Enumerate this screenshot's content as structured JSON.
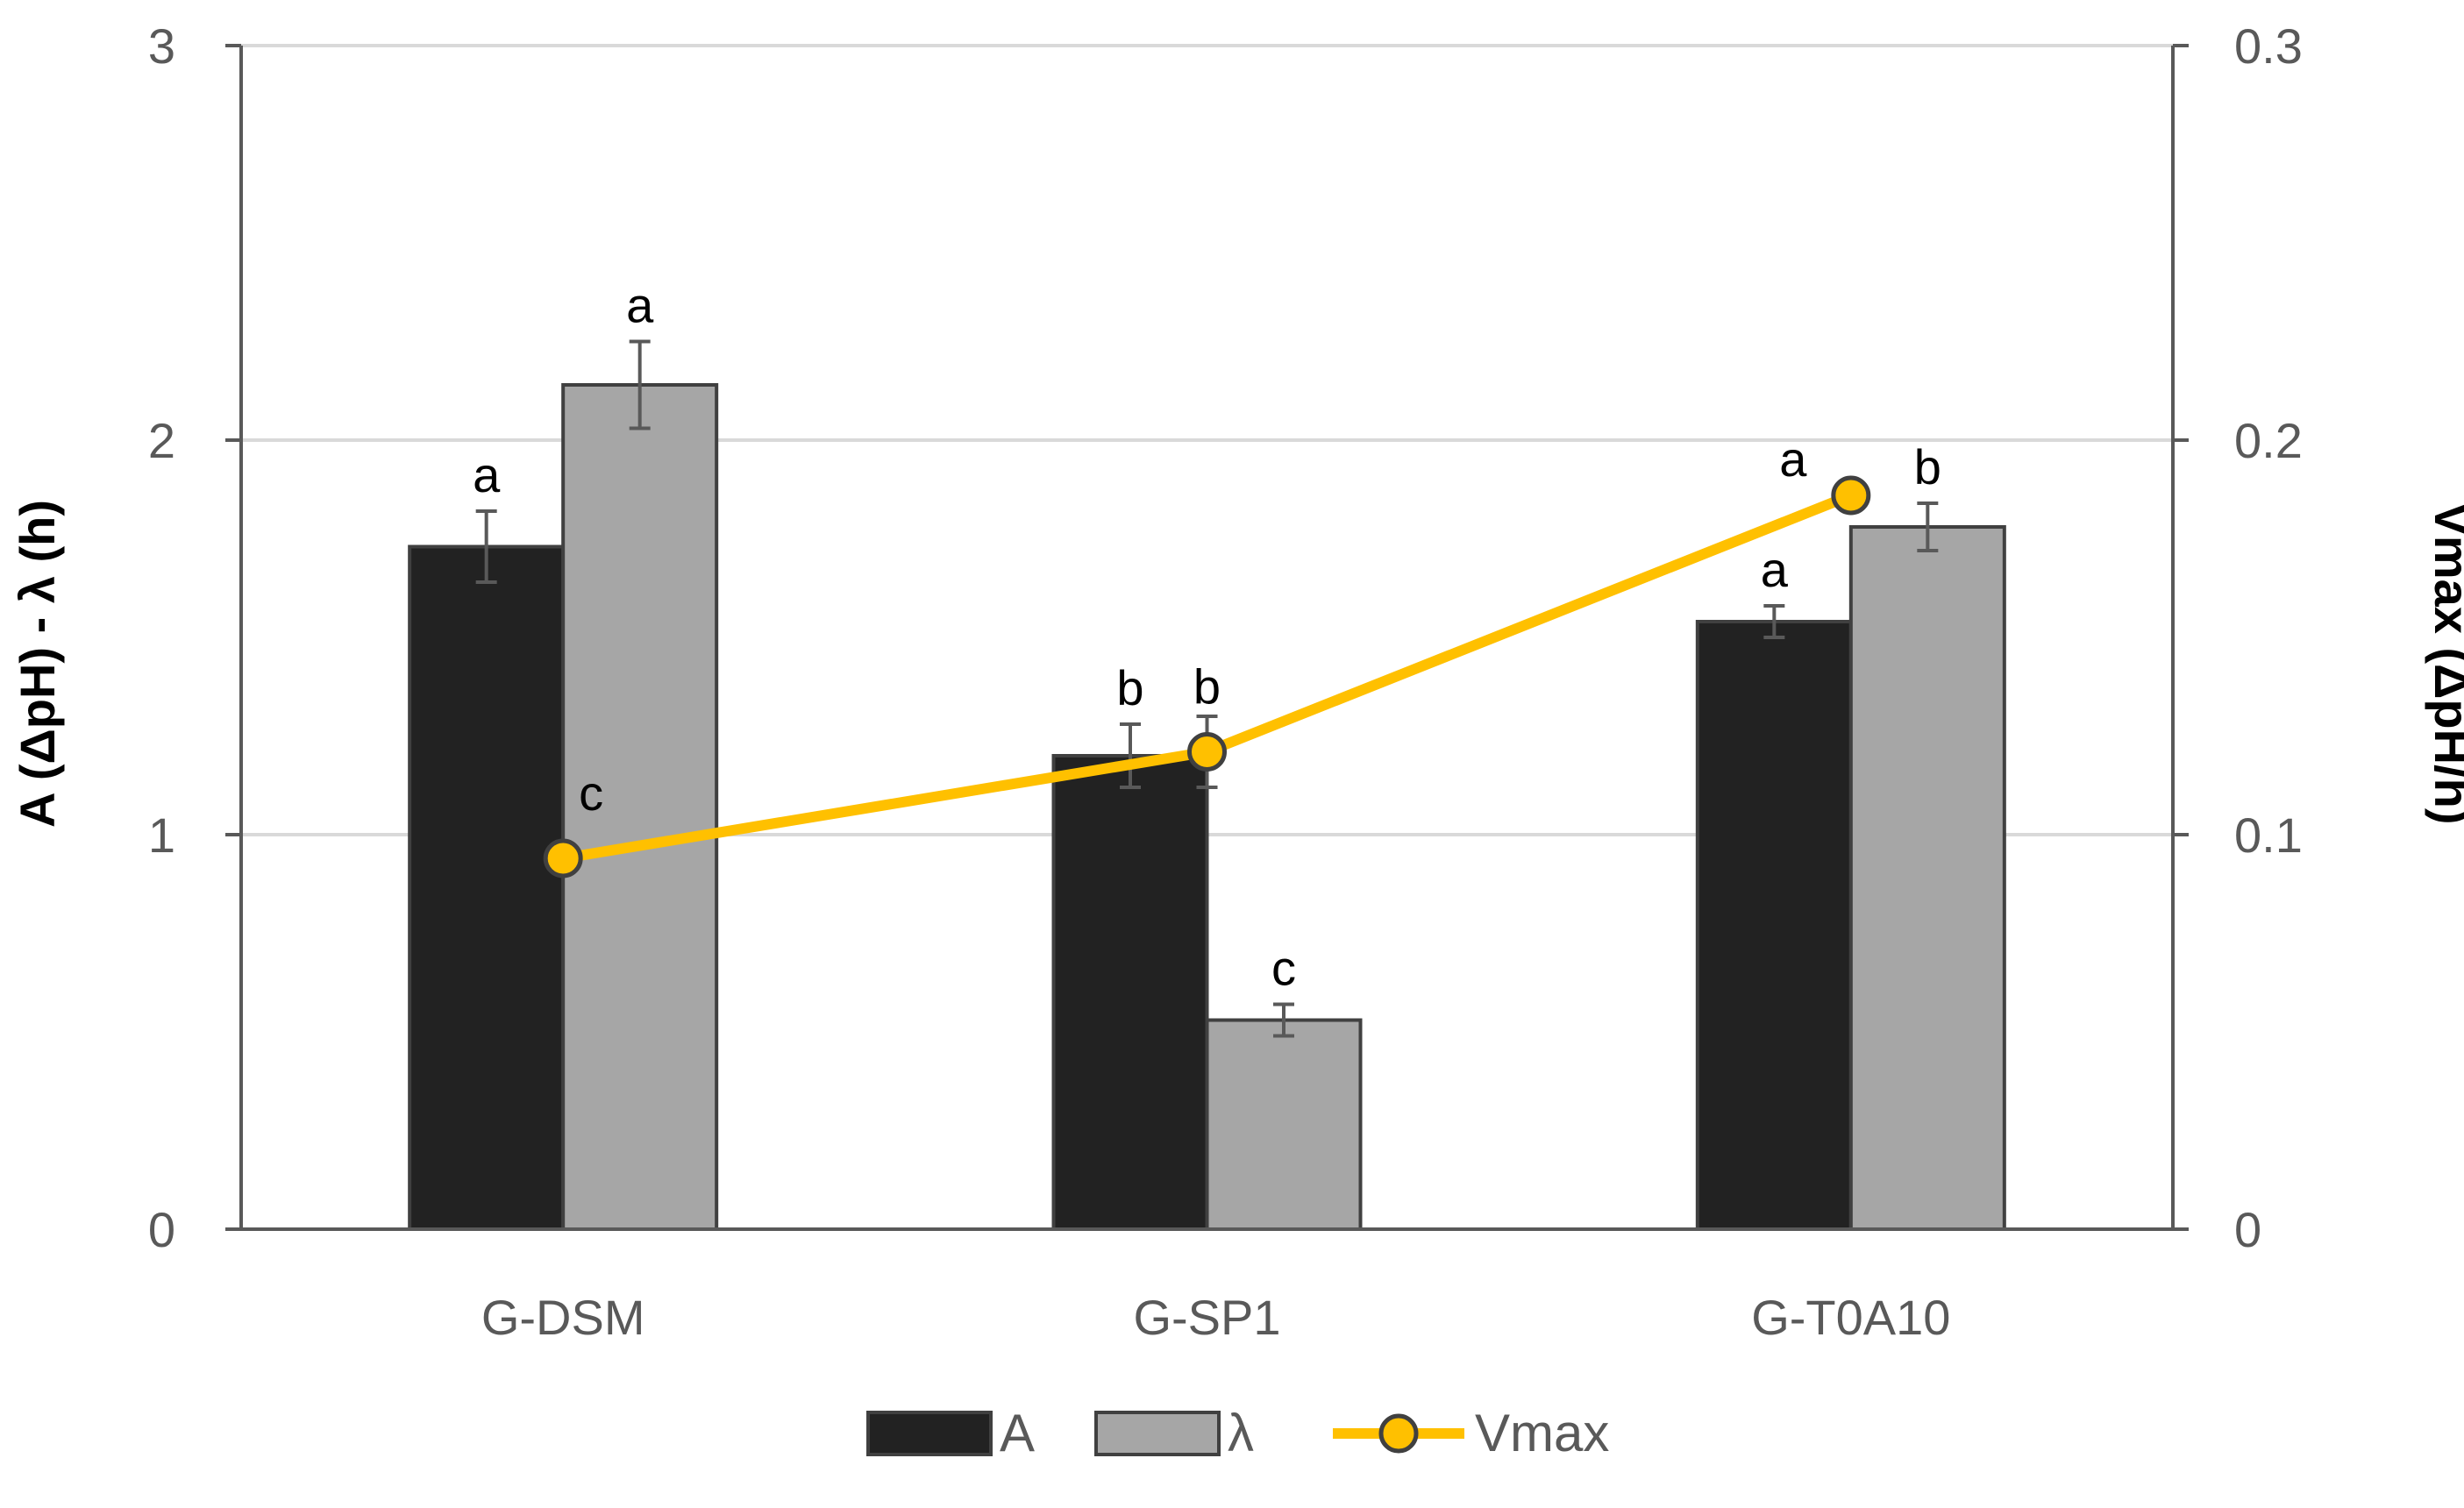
{
  "chart_data": {
    "type": "bar",
    "categories": [
      "G-DSM",
      "G-SP1",
      "G-T0A10"
    ],
    "series": [
      {
        "name": "A",
        "kind": "bar",
        "axis": "left",
        "color": "#222222",
        "values": [
          1.73,
          1.2,
          1.54
        ],
        "errors": [
          0.09,
          0.08,
          0.04
        ],
        "letters": [
          "a",
          "b",
          "a"
        ]
      },
      {
        "name": "λ",
        "kind": "bar",
        "axis": "left",
        "color": "#a6a6a6",
        "values": [
          2.14,
          0.53,
          1.78
        ],
        "errors": [
          0.11,
          0.04,
          0.06
        ],
        "letters": [
          "a",
          "c",
          "b"
        ]
      },
      {
        "name": "Vmax",
        "kind": "line",
        "axis": "right",
        "color": "#ffc000",
        "values": [
          0.094,
          0.121,
          0.186
        ],
        "errors": [
          0.0,
          0.009,
          0.0
        ],
        "letters": [
          "c",
          "b",
          "a"
        ]
      }
    ],
    "ylabel": "A (ΔpH) - λ (h)",
    "y2label": "Vmax (ΔpH/h)",
    "ylim": [
      0,
      3
    ],
    "y2lim": [
      0,
      0.3
    ],
    "yticks": [
      "0",
      "1",
      "2",
      "3"
    ],
    "y2ticks": [
      "0",
      "0.1",
      "0.2",
      "0.3"
    ],
    "grid": true,
    "legend_position": "bottom"
  }
}
